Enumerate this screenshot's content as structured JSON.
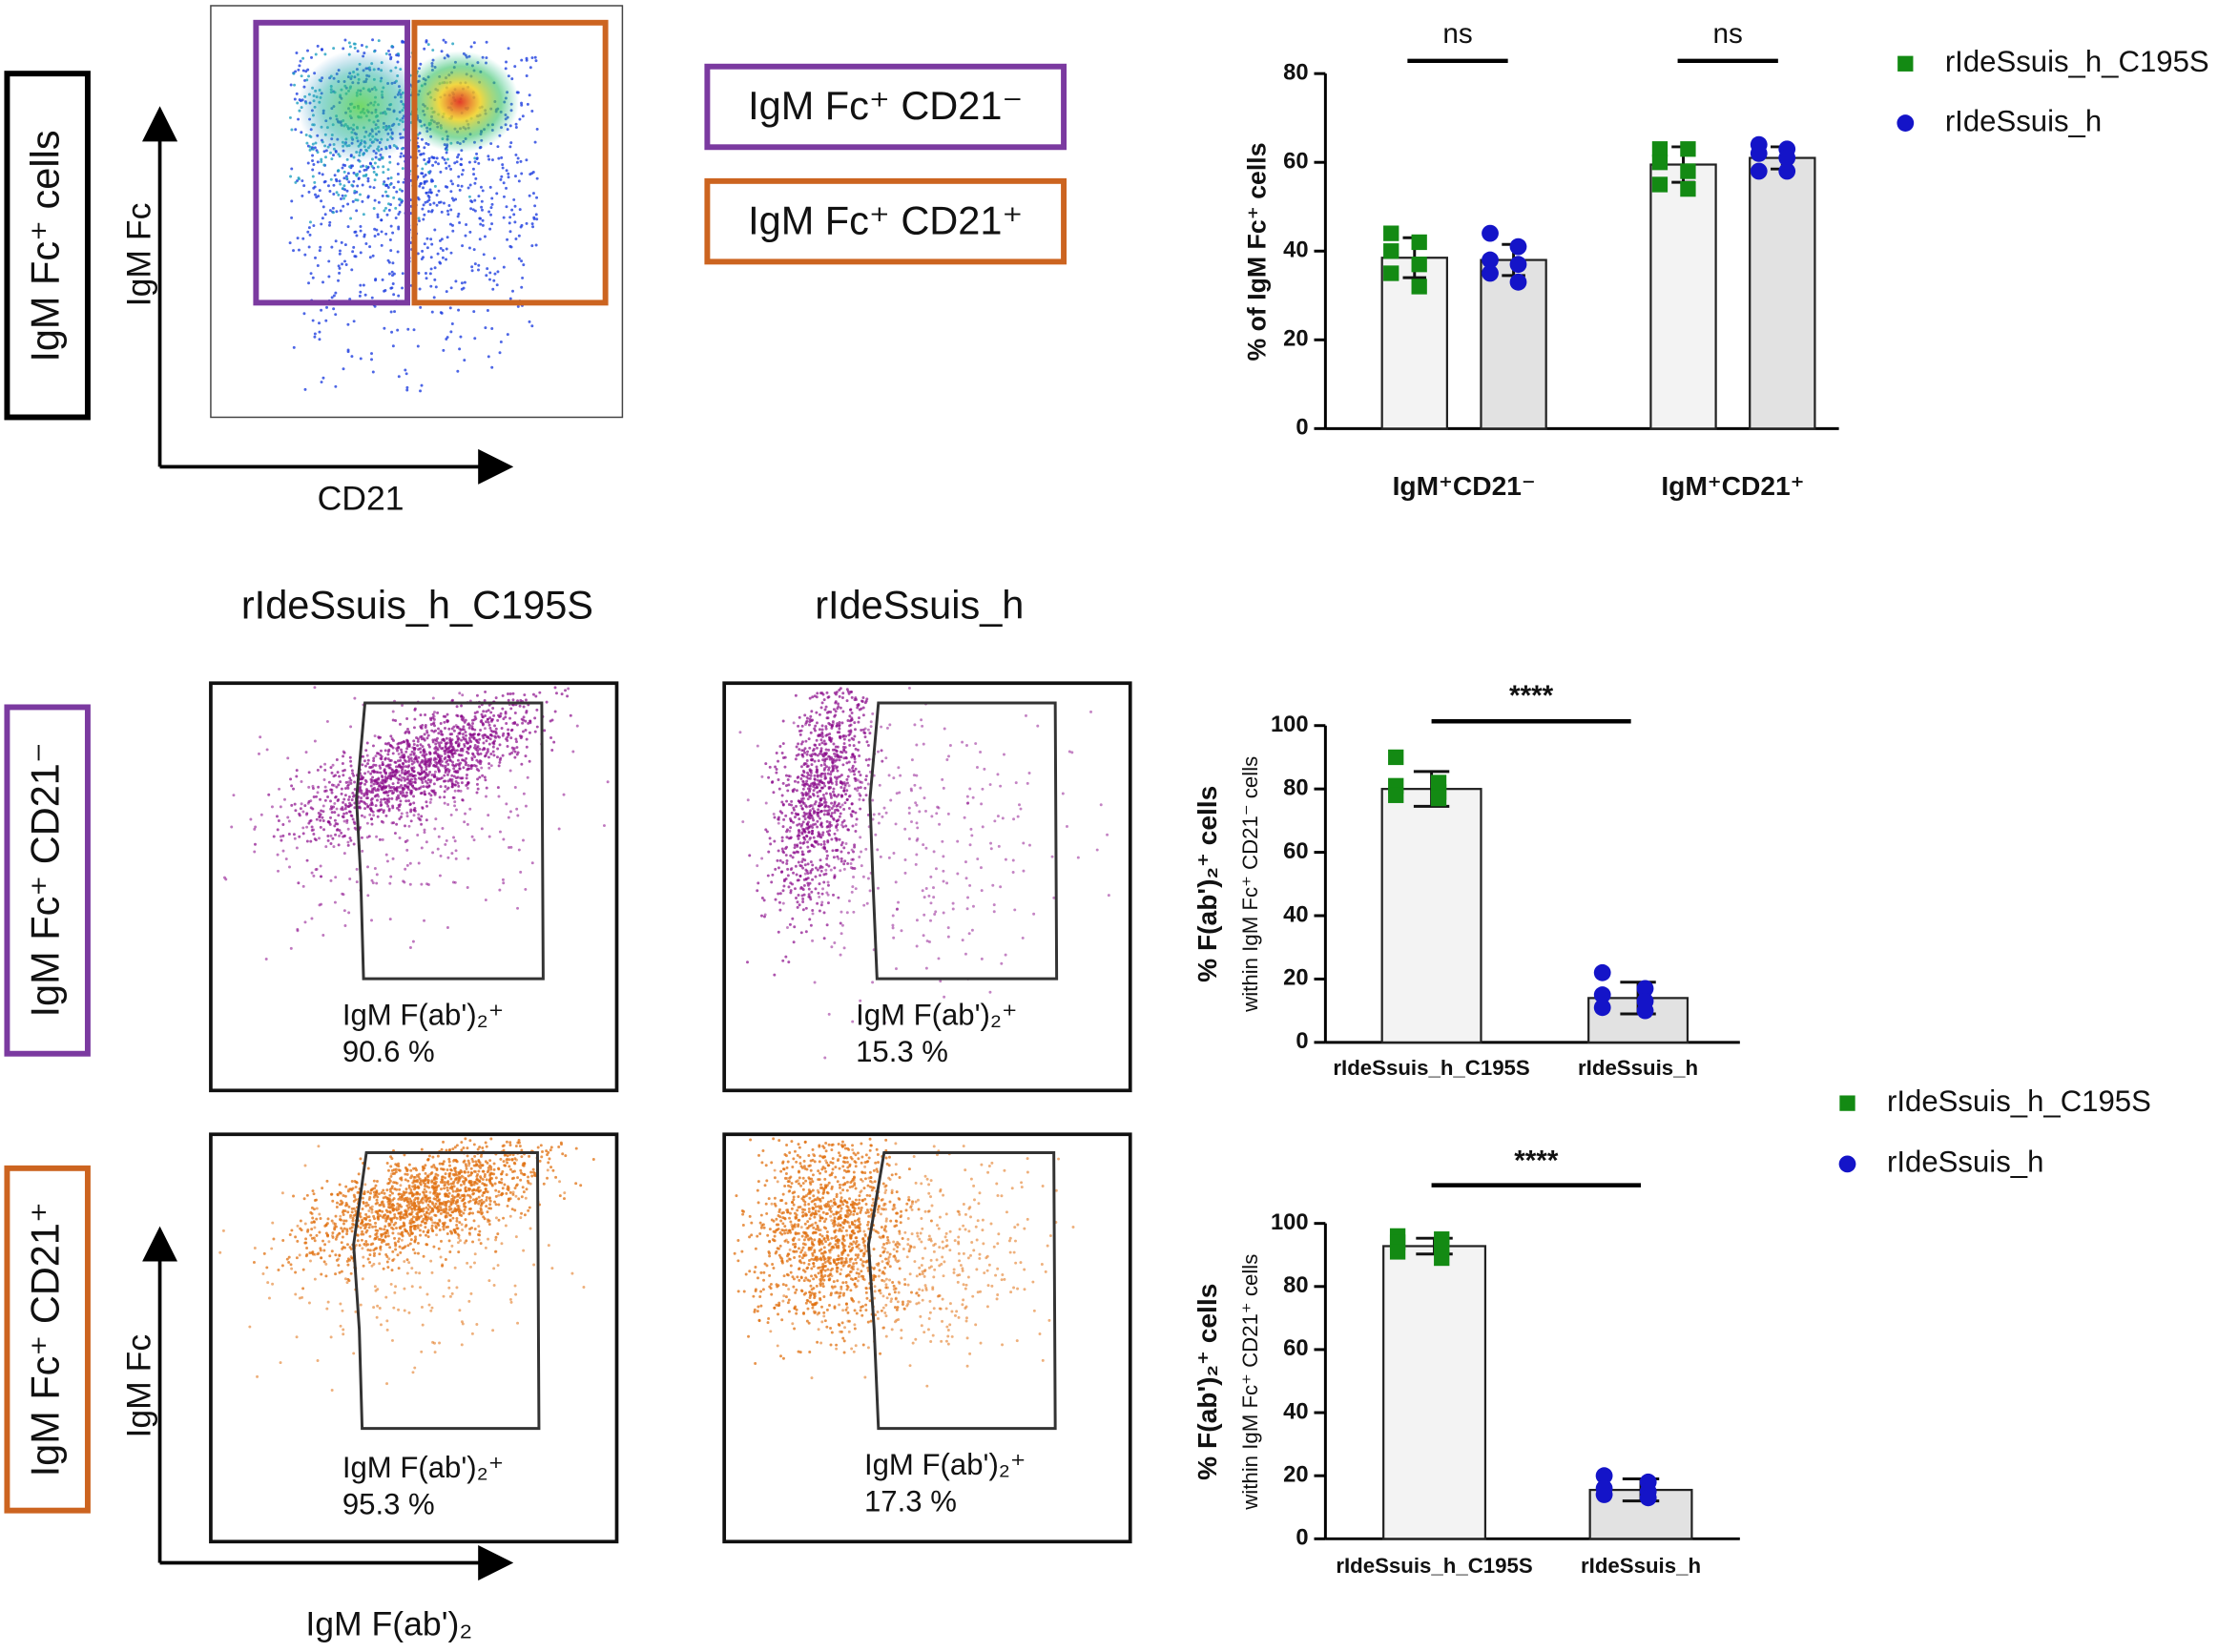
{
  "figure": {
    "top": {
      "population_label": "IgM Fc⁺ cells",
      "y_axis": "IgM Fc",
      "x_axis": "CD21",
      "gates": [
        "IgM Fc⁺ CD21⁻",
        "IgM Fc⁺ CD21⁺"
      ]
    },
    "columns": [
      "rIdeSsuis_h_C195S",
      "rIdeSsuis_h"
    ],
    "rows": [
      "IgM Fc⁺ CD21⁻",
      "IgM Fc⁺ CD21⁺"
    ],
    "gate_stats": [
      {
        "label": "IgM F(ab')₂⁺",
        "value": "90.6 %"
      },
      {
        "label": "IgM F(ab')₂⁺",
        "value": "15.3 %"
      },
      {
        "label": "IgM F(ab')₂⁺",
        "value": "95.3 %"
      },
      {
        "label": "IgM F(ab')₂⁺",
        "value": "17.3 %"
      }
    ],
    "bottom_axes": {
      "y": "IgM Fc",
      "x": "IgM F(ab')₂"
    }
  },
  "chart_data": [
    {
      "type": "bar",
      "ylabel": "% of IgM Fc⁺ cells",
      "categories": [
        "IgM⁺CD21⁻",
        "IgM⁺CD21⁺"
      ],
      "series": [
        {
          "name": "rIdeSsuis_h_C195S",
          "color": "#138a13",
          "bar_color": "#f3f3f3",
          "marker": "square",
          "values": [
            38.5,
            59.5
          ],
          "errors": [
            4.5,
            4
          ],
          "points": [
            [
              44,
              42,
              40,
              37,
              35,
              32
            ],
            [
              63,
              63,
              60,
              58,
              55,
              54
            ]
          ]
        },
        {
          "name": "rIdeSsuis_h",
          "color": "#1414c8",
          "bar_color": "#e2e2e2",
          "marker": "circle",
          "values": [
            38,
            61
          ],
          "errors": [
            3.5,
            2.5
          ],
          "points": [
            [
              44,
              41,
              38,
              37,
              35,
              33
            ],
            [
              64,
              63,
              62,
              61,
              58,
              58
            ]
          ]
        }
      ],
      "annotations": [
        "ns",
        "ns"
      ],
      "ylim": [
        0,
        80
      ],
      "yticks": [
        0,
        20,
        40,
        60,
        80
      ]
    },
    {
      "type": "bar",
      "ylabel": "% F(ab')₂⁺ cells",
      "ylabel_sub": "within IgM Fc⁺ CD21⁻ cells",
      "categories": [
        "rIdeSsuis_h_C195S",
        "rIdeSsuis_h"
      ],
      "values": [
        80,
        14
      ],
      "errors": [
        5.5,
        5
      ],
      "points": [
        [
          90,
          82,
          81,
          79,
          78,
          77
        ],
        [
          22,
          17,
          15,
          13,
          11,
          10
        ]
      ],
      "colors": [
        "#138a13",
        "#1414c8"
      ],
      "bar_colors": [
        "#f3f3f3",
        "#e2e2e2"
      ],
      "markers": [
        "square",
        "circle"
      ],
      "annotations": [
        "****"
      ],
      "ylim": [
        0,
        100
      ],
      "yticks": [
        0,
        20,
        40,
        60,
        80,
        100
      ]
    },
    {
      "type": "bar",
      "ylabel": "% F(ab')₂⁺ cells",
      "ylabel_sub": "within IgM Fc⁺ CD21⁺ cells",
      "categories": [
        "rIdeSsuis_h_C195S",
        "rIdeSsuis_h"
      ],
      "values": [
        92.8,
        15.5
      ],
      "errors": [
        2.5,
        3.5
      ],
      "points": [
        [
          96,
          95,
          94,
          93,
          91,
          89
        ],
        [
          20,
          18,
          16,
          15,
          14,
          13
        ]
      ],
      "colors": [
        "#138a13",
        "#1414c8"
      ],
      "bar_colors": [
        "#f3f3f3",
        "#e2e2e2"
      ],
      "markers": [
        "square",
        "circle"
      ],
      "annotations": [
        "****"
      ],
      "legend": [
        {
          "name": "rIdeSsuis_h_C195S",
          "color": "#138a13",
          "marker": "square"
        },
        {
          "name": "rIdeSsuis_h",
          "color": "#1414c8",
          "marker": "circle"
        }
      ],
      "ylim": [
        0,
        100
      ],
      "yticks": [
        0,
        20,
        40,
        60,
        80,
        100
      ]
    }
  ]
}
